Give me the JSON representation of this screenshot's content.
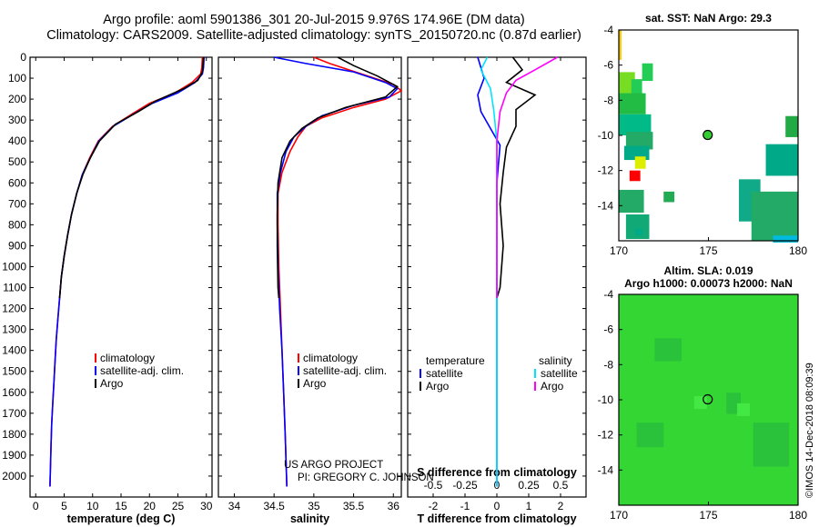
{
  "header": {
    "line1": "Argo profile: aoml 5901386_301 20-Jul-2015 9.976S 174.96E (DM data)",
    "line2": "Climatology: CARS2009. Satellite-adjusted climatology: synTS_20150720.nc (0.87d earlier)"
  },
  "colors": {
    "climatology": "#ff0000",
    "satellite": "#0000ff",
    "argo": "#000000",
    "sat_salinity": "#00e5ff",
    "argo_salinity": "#ff00ff"
  },
  "credits": {
    "project": "US ARGO PROJECT",
    "pi": "PI: GREGORY C. JOHNSON"
  },
  "watermark": "©IMOS 14-Dec-2018 08:09:39",
  "chart_data": [
    {
      "id": "temperature",
      "type": "line",
      "xlabel": "temperature (deg C)",
      "ylabel": "",
      "xlim": [
        -1,
        31
      ],
      "ylim": [
        2100,
        0
      ],
      "xticks": [
        0,
        5,
        10,
        15,
        20,
        25,
        30
      ],
      "yticks": [
        0,
        100,
        200,
        300,
        400,
        500,
        600,
        700,
        800,
        900,
        1000,
        1100,
        1200,
        1300,
        1400,
        1500,
        1600,
        1700,
        1800,
        1900,
        2000
      ],
      "legend": [
        "climatology",
        "satellite-adj. clim.",
        "Argo"
      ],
      "series": [
        {
          "name": "climatology",
          "color": "#ff0000",
          "points": [
            [
              29.3,
              0
            ],
            [
              29.2,
              50
            ],
            [
              29.0,
              80
            ],
            [
              27.5,
              120
            ],
            [
              24.5,
              170
            ],
            [
              20,
              220
            ],
            [
              17,
              270
            ],
            [
              13.5,
              330
            ],
            [
              11,
              400
            ],
            [
              9.5,
              480
            ],
            [
              8.2,
              560
            ],
            [
              7.2,
              650
            ],
            [
              6.3,
              750
            ],
            [
              5.6,
              850
            ],
            [
              5.0,
              950
            ],
            [
              4.5,
              1050
            ],
            [
              4.2,
              1150
            ],
            [
              3.9,
              1250
            ],
            [
              3.6,
              1350
            ],
            [
              3.4,
              1450
            ],
            [
              3.2,
              1550
            ],
            [
              3.0,
              1650
            ],
            [
              2.8,
              1750
            ],
            [
              2.7,
              1850
            ],
            [
              2.6,
              1950
            ],
            [
              2.5,
              2050
            ]
          ]
        },
        {
          "name": "satellite-adj. clim.",
          "color": "#0000ff",
          "points": [
            [
              29.6,
              0
            ],
            [
              29.5,
              50
            ],
            [
              29.3,
              80
            ],
            [
              28,
              120
            ],
            [
              25,
              170
            ],
            [
              20.5,
              220
            ],
            [
              17.3,
              270
            ],
            [
              13.6,
              330
            ],
            [
              11.1,
              400
            ],
            [
              9.6,
              480
            ],
            [
              8.2,
              560
            ],
            [
              7.2,
              650
            ],
            [
              6.3,
              750
            ],
            [
              5.6,
              850
            ],
            [
              5.0,
              950
            ],
            [
              4.5,
              1050
            ],
            [
              4.2,
              1150
            ],
            [
              3.9,
              1250
            ],
            [
              3.6,
              1350
            ],
            [
              3.4,
              1450
            ],
            [
              3.2,
              1550
            ],
            [
              3.0,
              1650
            ],
            [
              2.8,
              1750
            ],
            [
              2.7,
              1850
            ],
            [
              2.6,
              1950
            ],
            [
              2.5,
              2050
            ]
          ]
        },
        {
          "name": "Argo",
          "color": "#000000",
          "points": [
            [
              29.5,
              0
            ],
            [
              29.4,
              40
            ],
            [
              29.3,
              70
            ],
            [
              28.5,
              110
            ],
            [
              26,
              150
            ],
            [
              21,
              210
            ],
            [
              18,
              260
            ],
            [
              14,
              320
            ],
            [
              11.2,
              400
            ],
            [
              9.6,
              480
            ],
            [
              8.3,
              560
            ],
            [
              7.2,
              650
            ],
            [
              6.3,
              750
            ],
            [
              5.6,
              850
            ],
            [
              5.0,
              950
            ],
            [
              4.5,
              1050
            ],
            [
              4.2,
              1150
            ]
          ]
        }
      ]
    },
    {
      "id": "salinity",
      "type": "line",
      "xlabel": "salinity",
      "xlim": [
        33.8,
        36.1
      ],
      "ylim": [
        2100,
        0
      ],
      "xticks": [
        34,
        34.5,
        35,
        35.5,
        36
      ],
      "legend": [
        "climatology",
        "satellite-adj. clim.",
        "Argo"
      ],
      "series": [
        {
          "name": "climatology",
          "color": "#ff0000",
          "points": [
            [
              35.0,
              0
            ],
            [
              35.2,
              30
            ],
            [
              35.6,
              80
            ],
            [
              36.0,
              130
            ],
            [
              36.1,
              160
            ],
            [
              35.9,
              200
            ],
            [
              35.5,
              240
            ],
            [
              35.1,
              290
            ],
            [
              34.9,
              330
            ],
            [
              34.8,
              380
            ],
            [
              34.7,
              450
            ],
            [
              34.6,
              550
            ],
            [
              34.55,
              650
            ],
            [
              34.55,
              800
            ],
            [
              34.56,
              1000
            ],
            [
              34.58,
              1200
            ],
            [
              34.6,
              1400
            ],
            [
              34.62,
              1600
            ],
            [
              34.64,
              1800
            ],
            [
              34.66,
              2050
            ]
          ]
        },
        {
          "name": "satellite-adj. clim.",
          "color": "#0000ff",
          "points": [
            [
              34.5,
              0
            ],
            [
              34.9,
              30
            ],
            [
              35.5,
              70
            ],
            [
              35.9,
              120
            ],
            [
              36.05,
              150
            ],
            [
              35.95,
              190
            ],
            [
              35.5,
              230
            ],
            [
              35.1,
              280
            ],
            [
              34.9,
              330
            ],
            [
              34.75,
              380
            ],
            [
              34.65,
              450
            ],
            [
              34.58,
              550
            ],
            [
              34.54,
              650
            ],
            [
              34.54,
              800
            ],
            [
              34.55,
              1000
            ],
            [
              34.57,
              1200
            ],
            [
              34.6,
              1400
            ],
            [
              34.62,
              1600
            ],
            [
              34.64,
              1800
            ],
            [
              34.66,
              2050
            ]
          ]
        },
        {
          "name": "Argo",
          "color": "#000000",
          "points": [
            [
              35.3,
              0
            ],
            [
              35.5,
              40
            ],
            [
              35.8,
              90
            ],
            [
              36.05,
              140
            ],
            [
              35.9,
              190
            ],
            [
              35.4,
              240
            ],
            [
              35.05,
              290
            ],
            [
              34.85,
              340
            ],
            [
              34.7,
              400
            ],
            [
              34.6,
              480
            ],
            [
              34.55,
              600
            ],
            [
              34.54,
              750
            ],
            [
              34.54,
              900
            ],
            [
              34.55,
              1100
            ],
            [
              34.56,
              1150
            ]
          ]
        }
      ]
    },
    {
      "id": "difference",
      "type": "line",
      "xlabel": "T difference from climatology",
      "secondary_xlabel": "S difference from climatology",
      "xlim": [
        -2.8,
        2.8
      ],
      "ylim": [
        2100,
        0
      ],
      "xticks": [
        -2,
        -1,
        0,
        1,
        2
      ],
      "secondary_xticks": [
        "-0.5",
        "-0.25",
        "0",
        "0.25",
        "0.5"
      ],
      "legend_left_title": "temperature",
      "legend_right_title": "salinity",
      "legend": [
        "satellite",
        "Argo",
        "satellite",
        "Argo"
      ],
      "series": [
        {
          "name": "temperature satellite",
          "color": "#0000ff",
          "points": [
            [
              -0.6,
              0
            ],
            [
              -0.4,
              100
            ],
            [
              -0.6,
              180
            ],
            [
              -0.5,
              260
            ],
            [
              -0.2,
              340
            ],
            [
              0.1,
              420
            ],
            [
              0,
              600
            ],
            [
              0,
              1000
            ],
            [
              0,
              1400
            ],
            [
              0,
              2050
            ]
          ]
        },
        {
          "name": "temperature Argo",
          "color": "#000000",
          "points": [
            [
              0.5,
              0
            ],
            [
              0.8,
              60
            ],
            [
              0.3,
              120
            ],
            [
              1.2,
              180
            ],
            [
              0.6,
              250
            ],
            [
              0.6,
              330
            ],
            [
              0.3,
              430
            ],
            [
              0.2,
              550
            ],
            [
              0.1,
              700
            ],
            [
              0.2,
              900
            ],
            [
              0.1,
              1100
            ],
            [
              0,
              1150
            ]
          ]
        },
        {
          "name": "salinity satellite",
          "color": "#00e5ff",
          "points": [
            [
              -0.3,
              0
            ],
            [
              -0.5,
              60
            ],
            [
              -0.2,
              150
            ],
            [
              -0.1,
              250
            ],
            [
              0,
              400
            ],
            [
              0,
              800
            ],
            [
              0,
              1400
            ],
            [
              0,
              2050
            ]
          ]
        },
        {
          "name": "salinity Argo",
          "color": "#ff00ff",
          "points": [
            [
              1.9,
              0
            ],
            [
              1.2,
              60
            ],
            [
              0.6,
              110
            ],
            [
              0.3,
              170
            ],
            [
              0.1,
              260
            ],
            [
              0,
              400
            ],
            [
              0,
              1150
            ]
          ]
        }
      ]
    },
    {
      "id": "sst_map",
      "type": "heatmap",
      "title": "sat. SST: NaN Argo: 29.3",
      "xlim": [
        170,
        180
      ],
      "ylim": [
        -16,
        -4
      ],
      "xticks": [
        170,
        175,
        180
      ],
      "yticks": [
        -4,
        -6,
        -8,
        -10,
        -12,
        -14
      ],
      "marker": [
        174.96,
        -9.976
      ]
    },
    {
      "id": "sla_map",
      "type": "heatmap",
      "title": "Altim. SLA: 0.019",
      "subtitle": "Argo h1000: 0.00073 h2000: NaN",
      "xlim": [
        170,
        180
      ],
      "ylim": [
        -16,
        -4
      ],
      "xticks": [
        170,
        175,
        180
      ],
      "yticks": [
        -4,
        -6,
        -8,
        -10,
        -12,
        -14
      ],
      "marker": [
        174.96,
        -9.976
      ]
    }
  ]
}
